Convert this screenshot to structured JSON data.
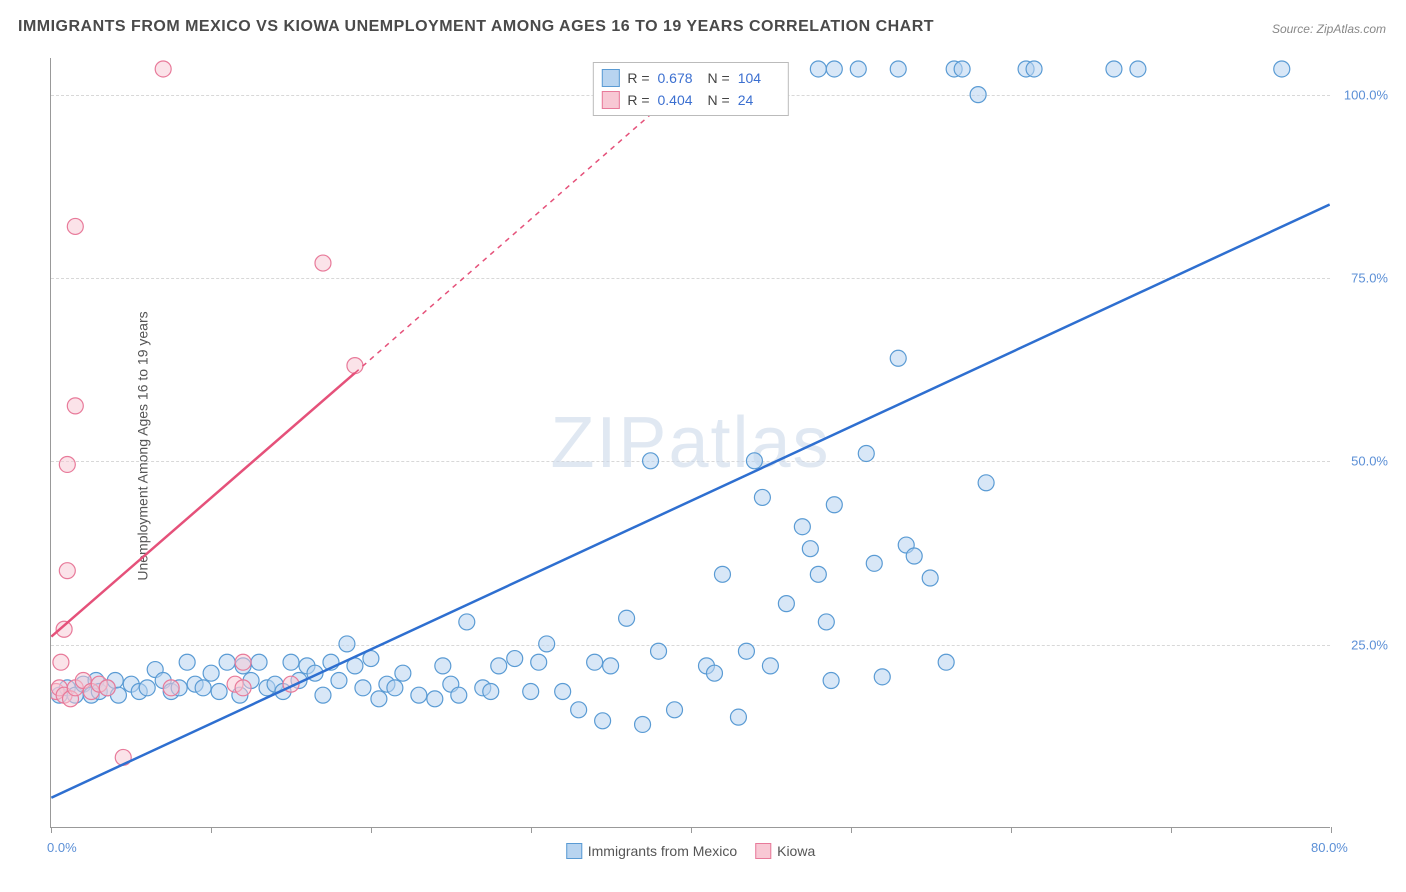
{
  "title": "IMMIGRANTS FROM MEXICO VS KIOWA UNEMPLOYMENT AMONG AGES 16 TO 19 YEARS CORRELATION CHART",
  "source": "Source: ZipAtlas.com",
  "watermark": "ZIPatlas",
  "chart": {
    "type": "scatter",
    "ylabel": "Unemployment Among Ages 16 to 19 years",
    "xlim": [
      0,
      80
    ],
    "ylim": [
      0,
      105
    ],
    "x_ticks": [
      0,
      10,
      20,
      30,
      40,
      50,
      60,
      70,
      80
    ],
    "x_tick_labels": {
      "0": "0.0%",
      "80": "80.0%"
    },
    "y_ticks": [
      25,
      50,
      75,
      100
    ],
    "y_tick_labels": {
      "25": "25.0%",
      "50": "50.0%",
      "75": "75.0%",
      "100": "100.0%"
    },
    "background_color": "#ffffff",
    "grid_color": "#d8d8d8",
    "series": [
      {
        "name": "Immigrants from Mexico",
        "fill": "#b8d4f0",
        "stroke": "#5a9bd4",
        "line_color": "#2e6fd0",
        "marker_radius": 8,
        "fill_opacity": 0.55,
        "R": "0.678",
        "N": "104",
        "trend": {
          "x1": 0,
          "y1": 4,
          "x2": 80,
          "y2": 85,
          "dash": null
        },
        "points": [
          [
            0.5,
            18
          ],
          [
            1,
            19
          ],
          [
            1.5,
            18
          ],
          [
            2,
            19.5
          ],
          [
            2.5,
            18
          ],
          [
            2.8,
            20
          ],
          [
            3,
            18.5
          ],
          [
            3.5,
            19
          ],
          [
            4,
            20
          ],
          [
            4.2,
            18
          ],
          [
            5,
            19.5
          ],
          [
            5.5,
            18.5
          ],
          [
            6,
            19
          ],
          [
            6.5,
            21.5
          ],
          [
            7,
            20
          ],
          [
            7.5,
            18.5
          ],
          [
            8,
            19
          ],
          [
            8.5,
            22.5
          ],
          [
            9,
            19.5
          ],
          [
            9.5,
            19
          ],
          [
            10,
            21
          ],
          [
            10.5,
            18.5
          ],
          [
            11,
            22.5
          ],
          [
            11.8,
            18
          ],
          [
            12,
            22
          ],
          [
            12.5,
            20
          ],
          [
            13,
            22.5
          ],
          [
            13.5,
            19
          ],
          [
            14,
            19.5
          ],
          [
            14.5,
            18.5
          ],
          [
            15,
            22.5
          ],
          [
            15.5,
            20
          ],
          [
            16,
            22
          ],
          [
            16.5,
            21
          ],
          [
            17,
            18
          ],
          [
            17.5,
            22.5
          ],
          [
            18,
            20
          ],
          [
            18.5,
            25
          ],
          [
            19,
            22
          ],
          [
            19.5,
            19
          ],
          [
            20,
            23
          ],
          [
            20.5,
            17.5
          ],
          [
            21,
            19.5
          ],
          [
            21.5,
            19
          ],
          [
            22,
            21
          ],
          [
            23,
            18
          ],
          [
            24,
            17.5
          ],
          [
            24.5,
            22
          ],
          [
            25,
            19.5
          ],
          [
            25.5,
            18
          ],
          [
            26,
            28
          ],
          [
            27,
            19
          ],
          [
            27.5,
            18.5
          ],
          [
            28,
            22
          ],
          [
            29,
            23
          ],
          [
            30,
            18.5
          ],
          [
            30.5,
            22.5
          ],
          [
            31,
            25
          ],
          [
            32,
            18.5
          ],
          [
            33,
            16
          ],
          [
            34,
            22.5
          ],
          [
            34.5,
            14.5
          ],
          [
            35,
            22
          ],
          [
            36,
            28.5
          ],
          [
            37,
            14
          ],
          [
            37.5,
            50
          ],
          [
            38,
            24
          ],
          [
            39,
            16
          ],
          [
            41,
            22
          ],
          [
            41.5,
            21
          ],
          [
            42,
            34.5
          ],
          [
            43,
            15
          ],
          [
            43.5,
            24
          ],
          [
            44,
            50
          ],
          [
            44.5,
            45
          ],
          [
            45,
            22
          ],
          [
            46,
            30.5
          ],
          [
            47,
            41
          ],
          [
            47.5,
            38
          ],
          [
            48,
            34.5
          ],
          [
            48.5,
            28
          ],
          [
            48.8,
            20
          ],
          [
            49,
            44
          ],
          [
            51,
            51
          ],
          [
            51.5,
            36
          ],
          [
            52,
            20.5
          ],
          [
            53,
            64
          ],
          [
            53.5,
            38.5
          ],
          [
            54,
            37
          ],
          [
            55,
            34
          ],
          [
            56,
            22.5
          ],
          [
            58,
            100
          ],
          [
            58.5,
            47
          ],
          [
            48,
            103.5
          ],
          [
            49,
            103.5
          ],
          [
            53,
            103.5
          ],
          [
            56.5,
            103.5
          ],
          [
            57,
            103.5
          ],
          [
            61,
            103.5
          ],
          [
            61.5,
            103.5
          ],
          [
            66.5,
            103.5
          ],
          [
            68,
            103.5
          ],
          [
            77,
            103.5
          ],
          [
            50.5,
            103.5
          ]
        ]
      },
      {
        "name": "Kiowa",
        "fill": "#f8c8d4",
        "stroke": "#e87a9a",
        "line_color": "#e5517a",
        "marker_radius": 8,
        "fill_opacity": 0.5,
        "R": "0.404",
        "N": "24",
        "trend": {
          "x1": 0,
          "y1": 26,
          "x2": 19,
          "y2": 62,
          "dash": null
        },
        "trend_ext": {
          "x1": 19,
          "y1": 62,
          "x2": 40.5,
          "y2": 103,
          "dash": "5,5"
        },
        "points": [
          [
            0.3,
            18.5
          ],
          [
            0.5,
            19
          ],
          [
            0.6,
            22.5
          ],
          [
            0.8,
            27
          ],
          [
            0.8,
            18
          ],
          [
            1,
            35
          ],
          [
            1,
            49.5
          ],
          [
            1.2,
            17.5
          ],
          [
            1.5,
            57.5
          ],
          [
            1.5,
            82
          ],
          [
            1.5,
            19
          ],
          [
            2,
            20
          ],
          [
            2.5,
            18.5
          ],
          [
            3,
            19.5
          ],
          [
            3.5,
            19
          ],
          [
            4.5,
            9.5
          ],
          [
            7,
            103.5
          ],
          [
            7.5,
            19
          ],
          [
            11.5,
            19.5
          ],
          [
            12,
            22.5
          ],
          [
            15,
            19.5
          ],
          [
            17,
            77
          ],
          [
            19,
            63
          ],
          [
            12,
            19
          ]
        ]
      }
    ],
    "legend_bottom": [
      {
        "label": "Immigrants from Mexico",
        "fill": "#b8d4f0",
        "stroke": "#5a9bd4"
      },
      {
        "label": "Kiowa",
        "fill": "#f8c8d4",
        "stroke": "#e87a9a"
      }
    ],
    "stats_labels": {
      "R": "R =",
      "N": "N ="
    }
  }
}
